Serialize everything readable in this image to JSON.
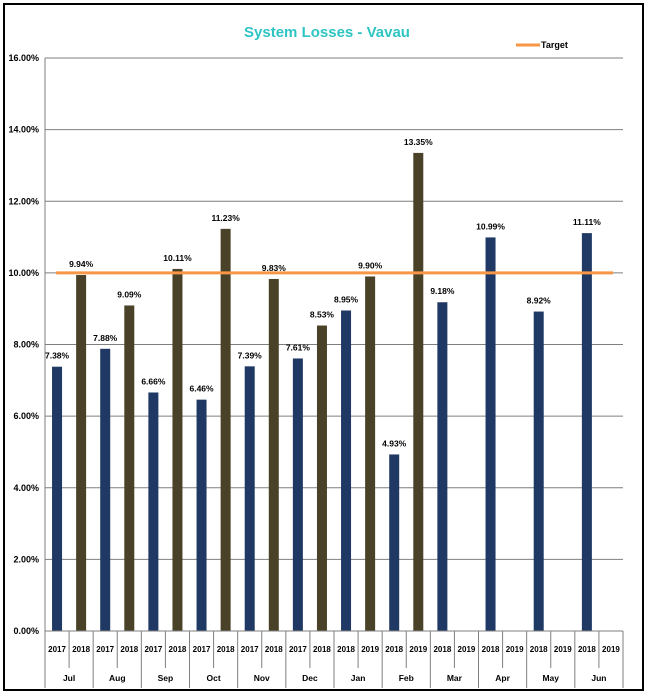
{
  "chart_data": {
    "type": "bar",
    "title": "System Losses - Vavau",
    "ylim": [
      0,
      16
    ],
    "y_ticks": [
      "0.00%",
      "2.00%",
      "4.00%",
      "6.00%",
      "8.00%",
      "10.00%",
      "12.00%",
      "14.00%",
      "16.00%"
    ],
    "grid": true,
    "legend_position": "top-right",
    "target": {
      "name": "Target",
      "value": 10.0,
      "color": "#f79646"
    },
    "colors": {
      "blue": "#1f3864",
      "olive": "#4a4228"
    },
    "months": [
      "Jul",
      "Aug",
      "Sep",
      "Oct",
      "Nov",
      "Dec",
      "Jan",
      "Feb",
      "Mar",
      "Apr",
      "May",
      "Jun"
    ],
    "slots": [
      {
        "month": "Jul",
        "year": "2017",
        "value": 7.38,
        "label": "7.38%",
        "color": "blue"
      },
      {
        "month": "Jul",
        "year": "2018",
        "value": 9.94,
        "label": "9.94%",
        "color": "olive"
      },
      {
        "month": "Aug",
        "year": "2017",
        "value": 7.88,
        "label": "7.88%",
        "color": "blue"
      },
      {
        "month": "Aug",
        "year": "2018",
        "value": 9.09,
        "label": "9.09%",
        "color": "olive"
      },
      {
        "month": "Sep",
        "year": "2017",
        "value": 6.66,
        "label": "6.66%",
        "color": "blue"
      },
      {
        "month": "Sep",
        "year": "2018",
        "value": 10.11,
        "label": "10.11%",
        "color": "olive"
      },
      {
        "month": "Oct",
        "year": "2017",
        "value": 6.46,
        "label": "6.46%",
        "color": "blue"
      },
      {
        "month": "Oct",
        "year": "2018",
        "value": 11.23,
        "label": "11.23%",
        "color": "olive"
      },
      {
        "month": "Nov",
        "year": "2017",
        "value": 7.39,
        "label": "7.39%",
        "color": "blue"
      },
      {
        "month": "Nov",
        "year": "2018",
        "value": 9.83,
        "label": "9.83%",
        "color": "olive"
      },
      {
        "month": "Dec",
        "year": "2017",
        "value": 7.61,
        "label": "7.61%",
        "color": "blue"
      },
      {
        "month": "Dec",
        "year": "2018",
        "value": 8.53,
        "label": "8.53%",
        "color": "olive"
      },
      {
        "month": "Jan",
        "year": "2018",
        "value": 8.95,
        "label": "8.95%",
        "color": "blue"
      },
      {
        "month": "Jan",
        "year": "2019",
        "value": 9.9,
        "label": "9.90%",
        "color": "olive"
      },
      {
        "month": "Feb",
        "year": "2018",
        "value": 4.93,
        "label": "4.93%",
        "color": "blue"
      },
      {
        "month": "Feb",
        "year": "2019",
        "value": 13.35,
        "label": "13.35%",
        "color": "olive"
      },
      {
        "month": "Mar",
        "year": "2018",
        "value": 9.18,
        "label": "9.18%",
        "color": "blue"
      },
      {
        "month": "Mar",
        "year": "2019",
        "value": null,
        "label": "",
        "color": "olive"
      },
      {
        "month": "Apr",
        "year": "2018",
        "value": 10.99,
        "label": "10.99%",
        "color": "blue"
      },
      {
        "month": "Apr",
        "year": "2019",
        "value": null,
        "label": "",
        "color": "olive"
      },
      {
        "month": "May",
        "year": "2018",
        "value": 8.92,
        "label": "8.92%",
        "color": "blue"
      },
      {
        "month": "May",
        "year": "2019",
        "value": null,
        "label": "",
        "color": "olive"
      },
      {
        "month": "Jun",
        "year": "2018",
        "value": 11.11,
        "label": "11.11%",
        "color": "blue"
      },
      {
        "month": "Jun",
        "year": "2019",
        "value": null,
        "label": "",
        "color": "olive"
      }
    ]
  }
}
